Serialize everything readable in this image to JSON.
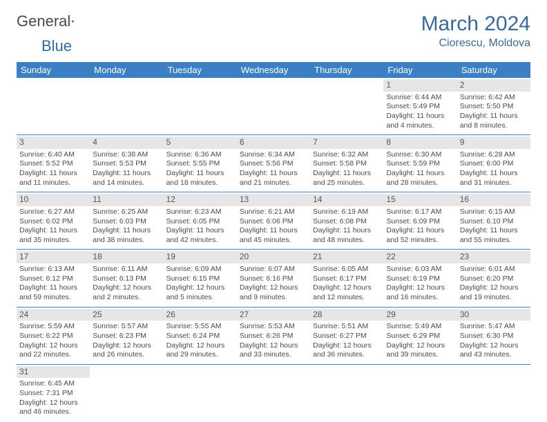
{
  "logo": {
    "word1": "General",
    "word2": "Blue"
  },
  "title": "March 2024",
  "location": "Ciorescu, Moldova",
  "colors": {
    "header_bg": "#3b7fc4",
    "header_text": "#ffffff",
    "daynum_bg": "#e6e6e6",
    "row_border": "#3b7fc4",
    "title_color": "#3a6a9a",
    "body_text": "#4a4a4a"
  },
  "days_of_week": [
    "Sunday",
    "Monday",
    "Tuesday",
    "Wednesday",
    "Thursday",
    "Friday",
    "Saturday"
  ],
  "first_weekday": 5,
  "days": [
    {
      "n": 1,
      "sunrise": "6:44 AM",
      "sunset": "5:49 PM",
      "daylight": "11 hours and 4 minutes."
    },
    {
      "n": 2,
      "sunrise": "6:42 AM",
      "sunset": "5:50 PM",
      "daylight": "11 hours and 8 minutes."
    },
    {
      "n": 3,
      "sunrise": "6:40 AM",
      "sunset": "5:52 PM",
      "daylight": "11 hours and 11 minutes."
    },
    {
      "n": 4,
      "sunrise": "6:38 AM",
      "sunset": "5:53 PM",
      "daylight": "11 hours and 14 minutes."
    },
    {
      "n": 5,
      "sunrise": "6:36 AM",
      "sunset": "5:55 PM",
      "daylight": "11 hours and 18 minutes."
    },
    {
      "n": 6,
      "sunrise": "6:34 AM",
      "sunset": "5:56 PM",
      "daylight": "11 hours and 21 minutes."
    },
    {
      "n": 7,
      "sunrise": "6:32 AM",
      "sunset": "5:58 PM",
      "daylight": "11 hours and 25 minutes."
    },
    {
      "n": 8,
      "sunrise": "6:30 AM",
      "sunset": "5:59 PM",
      "daylight": "11 hours and 28 minutes."
    },
    {
      "n": 9,
      "sunrise": "6:28 AM",
      "sunset": "6:00 PM",
      "daylight": "11 hours and 31 minutes."
    },
    {
      "n": 10,
      "sunrise": "6:27 AM",
      "sunset": "6:02 PM",
      "daylight": "11 hours and 35 minutes."
    },
    {
      "n": 11,
      "sunrise": "6:25 AM",
      "sunset": "6:03 PM",
      "daylight": "11 hours and 38 minutes."
    },
    {
      "n": 12,
      "sunrise": "6:23 AM",
      "sunset": "6:05 PM",
      "daylight": "11 hours and 42 minutes."
    },
    {
      "n": 13,
      "sunrise": "6:21 AM",
      "sunset": "6:06 PM",
      "daylight": "11 hours and 45 minutes."
    },
    {
      "n": 14,
      "sunrise": "6:19 AM",
      "sunset": "6:08 PM",
      "daylight": "11 hours and 48 minutes."
    },
    {
      "n": 15,
      "sunrise": "6:17 AM",
      "sunset": "6:09 PM",
      "daylight": "11 hours and 52 minutes."
    },
    {
      "n": 16,
      "sunrise": "6:15 AM",
      "sunset": "6:10 PM",
      "daylight": "11 hours and 55 minutes."
    },
    {
      "n": 17,
      "sunrise": "6:13 AM",
      "sunset": "6:12 PM",
      "daylight": "11 hours and 59 minutes."
    },
    {
      "n": 18,
      "sunrise": "6:11 AM",
      "sunset": "6:13 PM",
      "daylight": "12 hours and 2 minutes."
    },
    {
      "n": 19,
      "sunrise": "6:09 AM",
      "sunset": "6:15 PM",
      "daylight": "12 hours and 5 minutes."
    },
    {
      "n": 20,
      "sunrise": "6:07 AM",
      "sunset": "6:16 PM",
      "daylight": "12 hours and 9 minutes."
    },
    {
      "n": 21,
      "sunrise": "6:05 AM",
      "sunset": "6:17 PM",
      "daylight": "12 hours and 12 minutes."
    },
    {
      "n": 22,
      "sunrise": "6:03 AM",
      "sunset": "6:19 PM",
      "daylight": "12 hours and 16 minutes."
    },
    {
      "n": 23,
      "sunrise": "6:01 AM",
      "sunset": "6:20 PM",
      "daylight": "12 hours and 19 minutes."
    },
    {
      "n": 24,
      "sunrise": "5:59 AM",
      "sunset": "6:22 PM",
      "daylight": "12 hours and 22 minutes."
    },
    {
      "n": 25,
      "sunrise": "5:57 AM",
      "sunset": "6:23 PM",
      "daylight": "12 hours and 26 minutes."
    },
    {
      "n": 26,
      "sunrise": "5:55 AM",
      "sunset": "6:24 PM",
      "daylight": "12 hours and 29 minutes."
    },
    {
      "n": 27,
      "sunrise": "5:53 AM",
      "sunset": "6:26 PM",
      "daylight": "12 hours and 33 minutes."
    },
    {
      "n": 28,
      "sunrise": "5:51 AM",
      "sunset": "6:27 PM",
      "daylight": "12 hours and 36 minutes."
    },
    {
      "n": 29,
      "sunrise": "5:49 AM",
      "sunset": "6:29 PM",
      "daylight": "12 hours and 39 minutes."
    },
    {
      "n": 30,
      "sunrise": "5:47 AM",
      "sunset": "6:30 PM",
      "daylight": "12 hours and 43 minutes."
    },
    {
      "n": 31,
      "sunrise": "6:45 AM",
      "sunset": "7:31 PM",
      "daylight": "12 hours and 46 minutes."
    }
  ],
  "labels": {
    "sunrise": "Sunrise:",
    "sunset": "Sunset:",
    "daylight": "Daylight:"
  }
}
